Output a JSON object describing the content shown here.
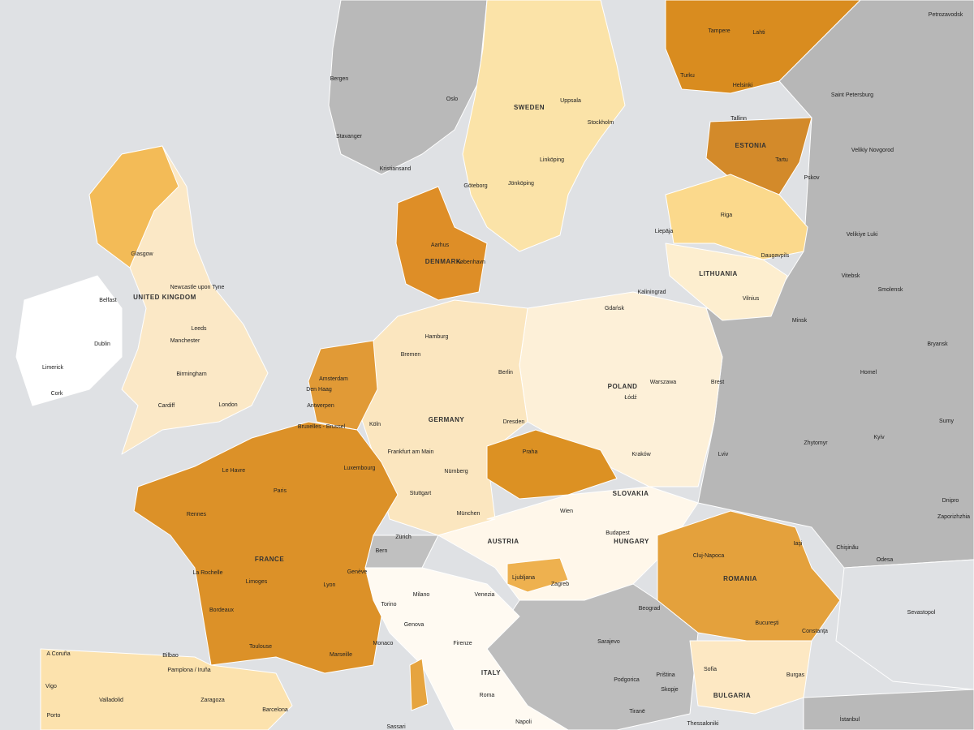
{
  "map": {
    "countries": [
      "SWEDEN",
      "ESTONIA",
      "DENMARK",
      "UNITED KINGDOM",
      "LITHUANIA",
      "POLAND",
      "GERMANY",
      "SLOVAKIA",
      "AUSTRIA",
      "HUNGARY",
      "FRANCE",
      "ROMANIA",
      "ITALY",
      "BULGARIA"
    ],
    "cities": [
      "Bergen",
      "Oslo",
      "Stavanger",
      "Kristiansand",
      "Uppsala",
      "Stockholm",
      "Linköping",
      "Göteborg",
      "Jönköping",
      "Tampere",
      "Lahti",
      "Turku",
      "Helsinki",
      "Petrozavodsk",
      "Saint Petersburg",
      "Tallinn",
      "Tartu",
      "Velikiy Novgorod",
      "Pskov",
      "Riga",
      "Liepāja",
      "Velikiye Luki",
      "Daugavpils",
      "Vitebsk",
      "Smolensk",
      "Kaliningrad",
      "Vilnius",
      "Minsk",
      "Bryansk",
      "Gdańsk",
      "Warszawa",
      "Łódź",
      "Brest",
      "Homel",
      "Glasgow",
      "Newcastle upon Tyne",
      "Belfast",
      "Dublin",
      "Leeds",
      "Manchester",
      "Limerick",
      "Cork",
      "Birmingham",
      "Cardiff",
      "London",
      "Aarhus",
      "København",
      "Hamburg",
      "Bremen",
      "Berlin",
      "Amsterdam",
      "Den Haag",
      "Antwerpen",
      "Bruxelles - Brussel",
      "Köln",
      "Luxembourg",
      "Frankfurt am Main",
      "Dresden",
      "Praha",
      "Kraków",
      "Nürnberg",
      "Stuttgart",
      "München",
      "Wien",
      "Budapest",
      "Le Havre",
      "Paris",
      "Rennes",
      "Zürich",
      "Bern",
      "Genève",
      "La Rochelle",
      "Limoges",
      "Lyon",
      "Bordeaux",
      "Toulouse",
      "Marseille",
      "Monaco",
      "Torino",
      "Milano",
      "Genova",
      "Venezia",
      "Ljubljana",
      "Zagreb",
      "Beograd",
      "Sarajevo",
      "Podgorica",
      "Priština",
      "Skopje",
      "Tiranë",
      "Firenze",
      "Roma",
      "Napoli",
      "Sassari",
      "Cluj-Napoca",
      "Iaşi",
      "Chişinău",
      "Odesa",
      "Bucureşti",
      "Constanţa",
      "Sevastopol",
      "Sofia",
      "Burgas",
      "Thessaloniki",
      "İstanbul",
      "A Coruña",
      "Vigo",
      "Porto",
      "Bilbao",
      "Pamplona / Iruña",
      "Valladolid",
      "Zaragoza",
      "Barcelona",
      "Zhytomyr",
      "Kyiv",
      "Sumy",
      "Dnipro",
      "Zaporizhzhia",
      "Lviv"
    ]
  }
}
